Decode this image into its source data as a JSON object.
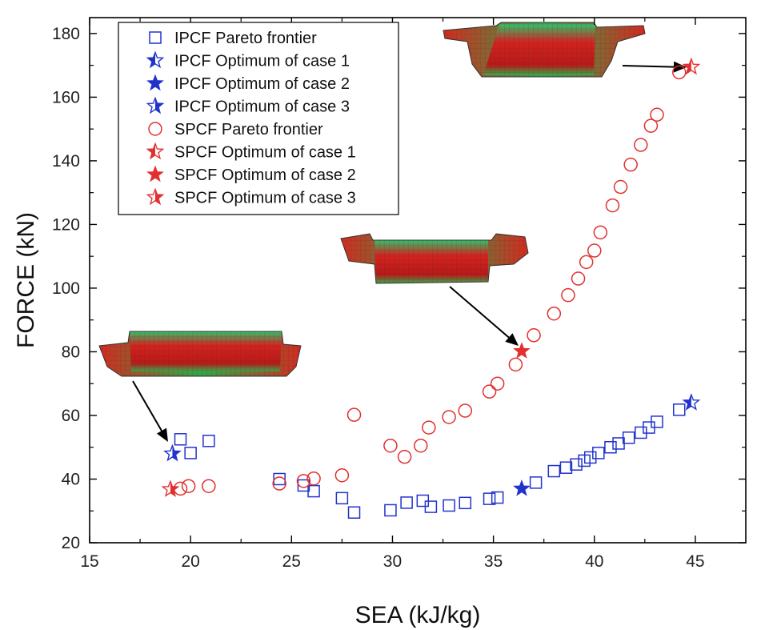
{
  "chart_data": {
    "type": "scatter",
    "title": "",
    "xlabel": "SEA (kJ/kg)",
    "ylabel": "FORCE (kN)",
    "xlim": [
      15,
      47.5
    ],
    "ylim": [
      20,
      185
    ],
    "xticks": [
      15,
      20,
      25,
      30,
      35,
      40,
      45
    ],
    "yticks": [
      20,
      40,
      60,
      80,
      100,
      120,
      140,
      160,
      180
    ],
    "grid": false,
    "legend_position": "top-left",
    "colors": {
      "ipcf": "#2233cc",
      "spcf": "#e23030",
      "axis": "#000000"
    },
    "series": [
      {
        "name": "IPCF Pareto frontier",
        "marker": "square-open",
        "color": "#2233cc",
        "points": [
          [
            19.5,
            52.5
          ],
          [
            20.0,
            48.2
          ],
          [
            20.9,
            52.0
          ],
          [
            24.4,
            40.0
          ],
          [
            25.6,
            38.0
          ],
          [
            26.1,
            36.2
          ],
          [
            27.5,
            34.0
          ],
          [
            28.1,
            29.5
          ],
          [
            29.9,
            30.2
          ],
          [
            30.7,
            32.6
          ],
          [
            31.5,
            33.2
          ],
          [
            31.9,
            31.3
          ],
          [
            32.8,
            31.7
          ],
          [
            33.6,
            32.5
          ],
          [
            34.8,
            33.8
          ],
          [
            35.2,
            34.2
          ],
          [
            37.1,
            38.9
          ],
          [
            38.0,
            42.5
          ],
          [
            38.6,
            43.6
          ],
          [
            39.1,
            44.6
          ],
          [
            39.5,
            45.8
          ],
          [
            39.8,
            46.8
          ],
          [
            40.2,
            48.2
          ],
          [
            40.8,
            50.0
          ],
          [
            41.2,
            51.2
          ],
          [
            41.7,
            53.0
          ],
          [
            42.3,
            54.6
          ],
          [
            42.7,
            56.2
          ],
          [
            43.1,
            58.0
          ],
          [
            44.2,
            61.8
          ]
        ]
      },
      {
        "name": "IPCF Optimum of case 1",
        "marker": "star-open",
        "color": "#2233cc",
        "points": [
          [
            44.8,
            64.0
          ]
        ]
      },
      {
        "name": "IPCF Optimum of case 2",
        "marker": "star-filled",
        "color": "#2233cc",
        "points": [
          [
            36.4,
            37.0
          ]
        ]
      },
      {
        "name": "IPCF Optimum of case 3",
        "marker": "star-half",
        "color": "#2233cc",
        "points": [
          [
            19.1,
            48.0
          ]
        ]
      },
      {
        "name": "SPCF Pareto frontier",
        "marker": "circle-open",
        "color": "#e23030",
        "points": [
          [
            19.5,
            37.0
          ],
          [
            19.9,
            37.8
          ],
          [
            20.9,
            37.8
          ],
          [
            24.4,
            38.6
          ],
          [
            25.6,
            39.4
          ],
          [
            26.1,
            40.2
          ],
          [
            27.5,
            41.2
          ],
          [
            28.1,
            60.2
          ],
          [
            29.9,
            50.5
          ],
          [
            30.6,
            47.0
          ],
          [
            31.4,
            50.5
          ],
          [
            31.8,
            56.2
          ],
          [
            32.8,
            59.5
          ],
          [
            33.6,
            61.5
          ],
          [
            34.8,
            67.5
          ],
          [
            35.2,
            70.0
          ],
          [
            36.1,
            76.0
          ],
          [
            37.0,
            85.2
          ],
          [
            38.0,
            92.0
          ],
          [
            38.7,
            97.8
          ],
          [
            39.2,
            103.0
          ],
          [
            39.6,
            108.2
          ],
          [
            40.0,
            111.8
          ],
          [
            40.3,
            117.5
          ],
          [
            40.9,
            126.0
          ],
          [
            41.3,
            131.8
          ],
          [
            41.8,
            138.8
          ],
          [
            42.3,
            145.0
          ],
          [
            42.8,
            151.0
          ],
          [
            43.1,
            154.5
          ],
          [
            44.2,
            167.8
          ]
        ]
      },
      {
        "name": "SPCF Optimum of case 1",
        "marker": "star-open",
        "color": "#e23030",
        "points": [
          [
            44.8,
            169.5
          ]
        ]
      },
      {
        "name": "SPCF Optimum of case 2",
        "marker": "star-filled",
        "color": "#e23030",
        "points": [
          [
            36.4,
            80.2
          ]
        ]
      },
      {
        "name": "SPCF Optimum of case 3",
        "marker": "star-half",
        "color": "#e23030",
        "points": [
          [
            19.0,
            36.8
          ]
        ]
      }
    ]
  }
}
